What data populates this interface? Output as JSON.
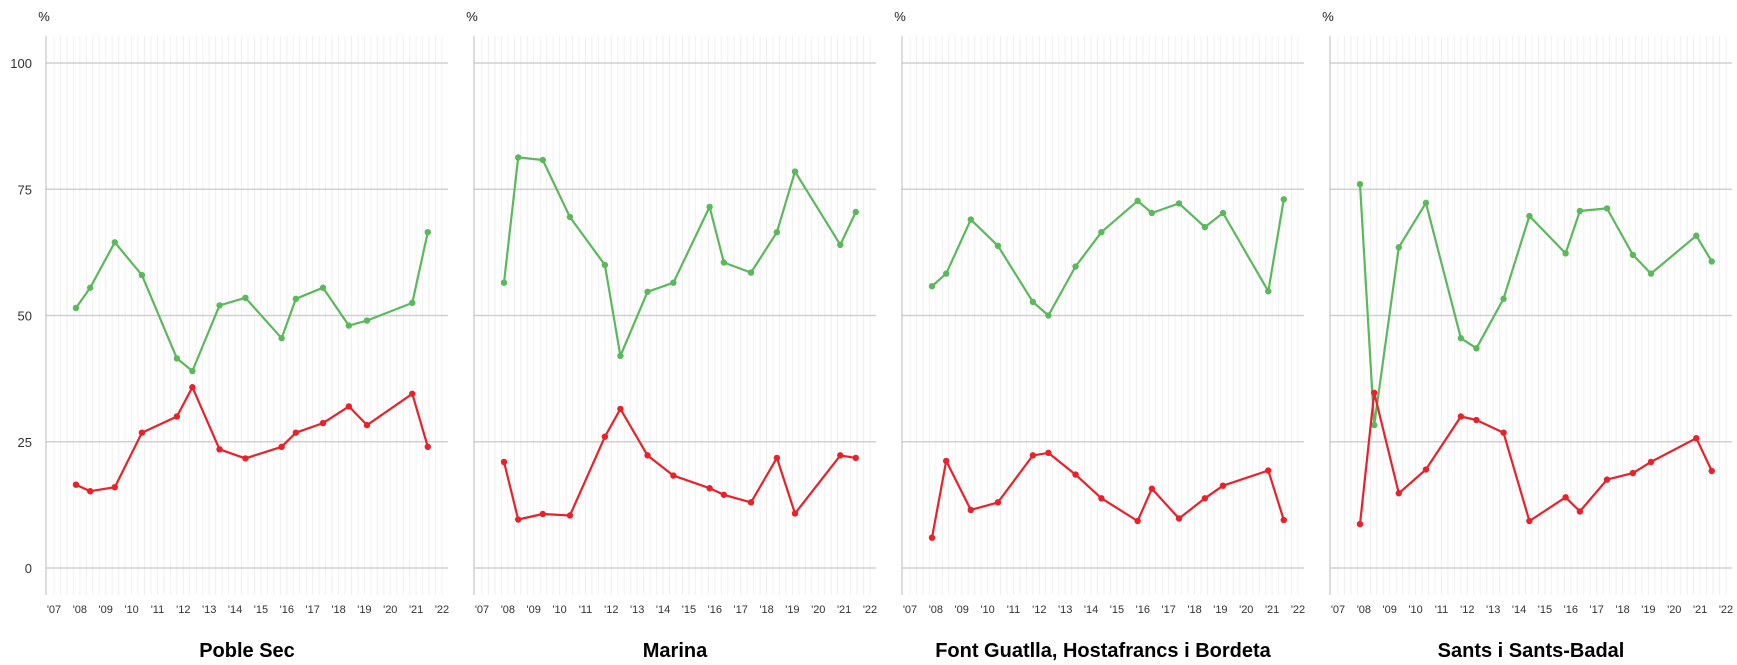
{
  "chart_data": {
    "type": "line",
    "y_unit": "%",
    "ylim": [
      0,
      100
    ],
    "yticks": [
      0,
      25,
      50,
      75,
      100
    ],
    "xlim": [
      2007,
      2022
    ],
    "xticks": [
      2007,
      2008,
      2009,
      2010,
      2011,
      2012,
      2013,
      2014,
      2015,
      2016,
      2017,
      2018,
      2019,
      2020,
      2021,
      2022
    ],
    "xtick_labels": [
      "'07",
      "'08",
      "'09",
      "'10",
      "'11",
      "'12",
      "'13",
      "'14",
      "'15",
      "'16",
      "'17",
      "'18",
      "'19",
      "'20",
      "'21",
      "'22"
    ],
    "grid": true,
    "legend": "none",
    "colors": {
      "green": "#5cb85c",
      "red": "#e8212b",
      "axis": "#bbbbbb",
      "grid": "#d0d0d0",
      "minor_grid": "#f0f0f0"
    },
    "panels": [
      {
        "title": "Poble Sec",
        "series": [
          {
            "color": "green",
            "points": [
              [
                2007.85,
                51.5
              ],
              [
                2008.4,
                55.5
              ],
              [
                2009.35,
                64.5
              ],
              [
                2010.4,
                58
              ],
              [
                2011.75,
                41.5
              ],
              [
                2012.35,
                39
              ],
              [
                2013.4,
                52
              ],
              [
                2014.4,
                53.5
              ],
              [
                2015.8,
                45.5
              ],
              [
                2016.35,
                53.3
              ],
              [
                2017.4,
                55.5
              ],
              [
                2018.4,
                48
              ],
              [
                2019.1,
                49
              ],
              [
                2020.85,
                52.5
              ],
              [
                2021.45,
                66.5
              ]
            ]
          },
          {
            "color": "red",
            "points": [
              [
                2007.85,
                16.5
              ],
              [
                2008.4,
                15.2
              ],
              [
                2009.35,
                16
              ],
              [
                2010.4,
                26.8
              ],
              [
                2011.75,
                30
              ],
              [
                2012.35,
                35.8
              ],
              [
                2013.4,
                23.5
              ],
              [
                2014.4,
                21.7
              ],
              [
                2015.8,
                24
              ],
              [
                2016.35,
                26.8
              ],
              [
                2017.4,
                28.7
              ],
              [
                2018.4,
                32
              ],
              [
                2019.1,
                28.3
              ],
              [
                2020.85,
                34.5
              ],
              [
                2021.45,
                24
              ]
            ]
          }
        ]
      },
      {
        "title": "Marina",
        "series": [
          {
            "color": "green",
            "points": [
              [
                2007.85,
                56.5
              ],
              [
                2008.4,
                81.3
              ],
              [
                2009.35,
                80.8
              ],
              [
                2010.4,
                69.5
              ],
              [
                2011.75,
                60
              ],
              [
                2012.35,
                42
              ],
              [
                2013.4,
                54.7
              ],
              [
                2014.4,
                56.5
              ],
              [
                2015.8,
                71.5
              ],
              [
                2016.35,
                60.5
              ],
              [
                2017.4,
                58.5
              ],
              [
                2018.4,
                66.5
              ],
              [
                2019.1,
                78.5
              ],
              [
                2020.85,
                64
              ],
              [
                2021.45,
                70.5
              ]
            ]
          },
          {
            "color": "red",
            "points": [
              [
                2007.85,
                21
              ],
              [
                2008.4,
                9.6
              ],
              [
                2009.35,
                10.7
              ],
              [
                2010.4,
                10.4
              ],
              [
                2011.75,
                26
              ],
              [
                2012.35,
                31.5
              ],
              [
                2013.4,
                22.3
              ],
              [
                2014.4,
                18.3
              ],
              [
                2015.8,
                15.8
              ],
              [
                2016.35,
                14.5
              ],
              [
                2017.4,
                13
              ],
              [
                2018.4,
                21.8
              ],
              [
                2019.1,
                10.8
              ],
              [
                2020.85,
                22.3
              ],
              [
                2021.45,
                21.8
              ]
            ]
          }
        ]
      },
      {
        "title": "Font Guatlla, Hostafrancs i Bordeta",
        "series": [
          {
            "color": "green",
            "points": [
              [
                2007.85,
                55.8
              ],
              [
                2008.4,
                58.3
              ],
              [
                2009.35,
                69
              ],
              [
                2010.4,
                63.8
              ],
              [
                2011.75,
                52.7
              ],
              [
                2012.35,
                50
              ],
              [
                2013.4,
                59.7
              ],
              [
                2014.4,
                66.5
              ],
              [
                2015.8,
                72.7
              ],
              [
                2016.35,
                70.3
              ],
              [
                2017.4,
                72.2
              ],
              [
                2018.4,
                67.5
              ],
              [
                2019.1,
                70.3
              ],
              [
                2020.85,
                54.8
              ],
              [
                2021.45,
                73
              ]
            ]
          },
          {
            "color": "red",
            "points": [
              [
                2007.85,
                6
              ],
              [
                2008.4,
                21.2
              ],
              [
                2009.35,
                11.5
              ],
              [
                2010.4,
                13
              ],
              [
                2011.75,
                22.3
              ],
              [
                2012.35,
                22.8
              ],
              [
                2013.4,
                18.5
              ],
              [
                2014.4,
                13.8
              ],
              [
                2015.8,
                9.3
              ],
              [
                2016.35,
                15.7
              ],
              [
                2017.4,
                9.8
              ],
              [
                2018.4,
                13.8
              ],
              [
                2019.1,
                16.3
              ],
              [
                2020.85,
                19.3
              ],
              [
                2021.45,
                9.5
              ]
            ]
          }
        ]
      },
      {
        "title": "Sants i Sants-Badal",
        "series": [
          {
            "color": "green",
            "points": [
              [
                2007.85,
                76
              ],
              [
                2008.4,
                28.3
              ],
              [
                2009.35,
                63.5
              ],
              [
                2010.4,
                72.3
              ],
              [
                2011.75,
                45.5
              ],
              [
                2012.35,
                43.5
              ],
              [
                2013.4,
                53.3
              ],
              [
                2014.4,
                69.7
              ],
              [
                2015.8,
                62.3
              ],
              [
                2016.35,
                70.7
              ],
              [
                2017.4,
                71.2
              ],
              [
                2018.4,
                62
              ],
              [
                2019.1,
                58.3
              ],
              [
                2020.85,
                65.8
              ],
              [
                2021.45,
                60.7
              ]
            ]
          },
          {
            "color": "red",
            "points": [
              [
                2007.85,
                8.7
              ],
              [
                2008.4,
                34.7
              ],
              [
                2009.35,
                14.8
              ],
              [
                2010.4,
                19.5
              ],
              [
                2011.75,
                30
              ],
              [
                2012.35,
                29.3
              ],
              [
                2013.4,
                26.8
              ],
              [
                2014.4,
                9.3
              ],
              [
                2015.8,
                14
              ],
              [
                2016.35,
                11.2
              ],
              [
                2017.4,
                17.5
              ],
              [
                2018.4,
                18.8
              ],
              [
                2019.1,
                21
              ],
              [
                2020.85,
                25.7
              ],
              [
                2021.45,
                19.2
              ]
            ]
          }
        ]
      }
    ]
  }
}
